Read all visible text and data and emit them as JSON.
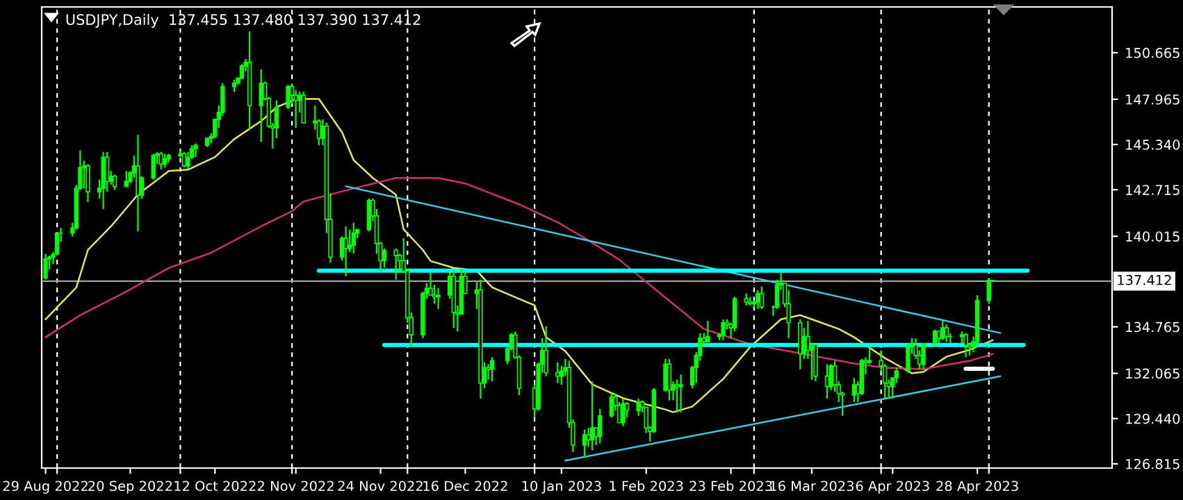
{
  "chart_data": {
    "type": "candlestick",
    "title": "USDJPY,Daily  137.455 137.480 137.390 137.412",
    "color": "#00ff00",
    "x": [
      "2022-08-29",
      "2022-08-30",
      "2022-08-31",
      "2022-09-01",
      "2022-09-02",
      "2022-09-05",
      "2022-09-06",
      "2022-09-07",
      "2022-09-08",
      "2022-09-09",
      "2022-09-12",
      "2022-09-13",
      "2022-09-14",
      "2022-09-15",
      "2022-09-16",
      "2022-09-19",
      "2022-09-20",
      "2022-09-21",
      "2022-09-22",
      "2022-09-23",
      "2022-09-26",
      "2022-09-27",
      "2022-09-28",
      "2022-09-29",
      "2022-09-30",
      "2022-10-03",
      "2022-10-04",
      "2022-10-05",
      "2022-10-06",
      "2022-10-07",
      "2022-10-10",
      "2022-10-11",
      "2022-10-12",
      "2022-10-13",
      "2022-10-14",
      "2022-10-17",
      "2022-10-18",
      "2022-10-19",
      "2022-10-20",
      "2022-10-21",
      "2022-10-24",
      "2022-10-25",
      "2022-10-26",
      "2022-10-27",
      "2022-10-28",
      "2022-10-31",
      "2022-11-01",
      "2022-11-02",
      "2022-11-03",
      "2022-11-04",
      "2022-11-07",
      "2022-11-08",
      "2022-11-09",
      "2022-11-10",
      "2022-11-11",
      "2022-11-14",
      "2022-11-15",
      "2022-11-16",
      "2022-11-17",
      "2022-11-18",
      "2022-11-21",
      "2022-11-22",
      "2022-11-23",
      "2022-11-24",
      "2022-11-25",
      "2022-11-28",
      "2022-11-29",
      "2022-11-30",
      "2022-12-01",
      "2022-12-02",
      "2022-12-05",
      "2022-12-06",
      "2022-12-07",
      "2022-12-08",
      "2022-12-09",
      "2022-12-12",
      "2022-12-13",
      "2022-12-14",
      "2022-12-15",
      "2022-12-16",
      "2022-12-19",
      "2022-12-20",
      "2022-12-21",
      "2022-12-22",
      "2022-12-23",
      "2022-12-27",
      "2022-12-28",
      "2022-12-29",
      "2022-12-30",
      "2023-01-03",
      "2023-01-04",
      "2023-01-05",
      "2023-01-06",
      "2023-01-09",
      "2023-01-10",
      "2023-01-11",
      "2023-01-12",
      "2023-01-13",
      "2023-01-16",
      "2023-01-17",
      "2023-01-18",
      "2023-01-19",
      "2023-01-20",
      "2023-01-23",
      "2023-01-24",
      "2023-01-25",
      "2023-01-26",
      "2023-01-27",
      "2023-01-30",
      "2023-01-31",
      "2023-02-01",
      "2023-02-02",
      "2023-02-03",
      "2023-02-06",
      "2023-02-07",
      "2023-02-08",
      "2023-02-09",
      "2023-02-10",
      "2023-02-13",
      "2023-02-14",
      "2023-02-15",
      "2023-02-16",
      "2023-02-17",
      "2023-02-20",
      "2023-02-21",
      "2023-02-22",
      "2023-02-23",
      "2023-02-24",
      "2023-02-27",
      "2023-02-28",
      "2023-03-01",
      "2023-03-02",
      "2023-03-03",
      "2023-03-06",
      "2023-03-07",
      "2023-03-08",
      "2023-03-09",
      "2023-03-10",
      "2023-03-13",
      "2023-03-14",
      "2023-03-15",
      "2023-03-16",
      "2023-03-17",
      "2023-03-20",
      "2023-03-21",
      "2023-03-22",
      "2023-03-23",
      "2023-03-24",
      "2023-03-27",
      "2023-03-28",
      "2023-03-29",
      "2023-03-30",
      "2023-03-31",
      "2023-04-03",
      "2023-04-04",
      "2023-04-05",
      "2023-04-06",
      "2023-04-07",
      "2023-04-10",
      "2023-04-11",
      "2023-04-12",
      "2023-04-13",
      "2023-04-14",
      "2023-04-17",
      "2023-04-18",
      "2023-04-19",
      "2023-04-20",
      "2023-04-21",
      "2023-04-24",
      "2023-04-25",
      "2023-04-26",
      "2023-04-27",
      "2023-04-28",
      "2023-05-01",
      "2023-05-02"
    ],
    "ohlc": [
      [
        137.6,
        139.0,
        137.5,
        138.7
      ],
      [
        138.7,
        138.9,
        138.1,
        138.8
      ],
      [
        138.8,
        139.1,
        138.4,
        138.96
      ],
      [
        139.0,
        140.2,
        138.9,
        140.2
      ],
      [
        140.2,
        140.5,
        139.7,
        140.2
      ],
      [
        140.2,
        140.8,
        140.0,
        140.5
      ],
      [
        140.5,
        143.0,
        140.4,
        142.8
      ],
      [
        142.8,
        145.0,
        142.7,
        144.0
      ],
      [
        144.0,
        144.4,
        142.8,
        144.1
      ],
      [
        144.1,
        144.2,
        142.0,
        142.6
      ],
      [
        142.6,
        143.3,
        142.2,
        142.8
      ],
      [
        142.8,
        144.9,
        141.6,
        144.6
      ],
      [
        144.6,
        144.9,
        142.6,
        143.2
      ],
      [
        143.2,
        143.8,
        143.0,
        143.5
      ],
      [
        143.5,
        143.6,
        142.7,
        142.9
      ],
      [
        142.9,
        143.8,
        142.9,
        143.2
      ],
      [
        143.2,
        143.8,
        143.1,
        143.7
      ],
      [
        143.7,
        144.7,
        143.4,
        144.1
      ],
      [
        144.1,
        145.9,
        140.3,
        142.4
      ],
      [
        142.4,
        143.5,
        142.2,
        143.4
      ],
      [
        143.4,
        144.8,
        143.3,
        144.7
      ],
      [
        144.7,
        144.9,
        144.2,
        144.8
      ],
      [
        144.8,
        144.9,
        143.9,
        144.2
      ],
      [
        144.2,
        144.8,
        144.0,
        144.5
      ],
      [
        144.5,
        144.8,
        144.3,
        144.7
      ],
      [
        144.7,
        145.0,
        144.6,
        144.8
      ],
      [
        144.8,
        144.9,
        144.0,
        144.1
      ],
      [
        144.1,
        144.9,
        143.9,
        144.6
      ],
      [
        144.6,
        145.3,
        144.5,
        145.1
      ],
      [
        145.1,
        145.4,
        144.6,
        145.3
      ],
      [
        145.3,
        145.7,
        145.2,
        145.7
      ],
      [
        145.7,
        146.0,
        145.4,
        145.8
      ],
      [
        145.8,
        146.8,
        145.7,
        146.8
      ],
      [
        146.8,
        147.6,
        146.3,
        147.2
      ],
      [
        147.2,
        148.9,
        147.0,
        148.7
      ],
      [
        148.7,
        149.1,
        148.4,
        148.9
      ],
      [
        148.9,
        149.2,
        148.8,
        149.2
      ],
      [
        149.2,
        150.0,
        149.1,
        149.9
      ],
      [
        149.9,
        150.3,
        149.6,
        150.1
      ],
      [
        150.1,
        151.9,
        146.2,
        147.6
      ],
      [
        147.6,
        149.7,
        145.5,
        148.9
      ],
      [
        148.9,
        149.0,
        147.9,
        148.0
      ],
      [
        148.0,
        148.1,
        146.3,
        146.4
      ],
      [
        146.4,
        146.6,
        145.1,
        146.3
      ],
      [
        146.3,
        147.9,
        145.7,
        147.5
      ],
      [
        147.5,
        148.8,
        147.4,
        148.7
      ],
      [
        148.7,
        148.8,
        147.7,
        148.2
      ],
      [
        148.2,
        148.5,
        146.3,
        147.9
      ],
      [
        147.9,
        148.4,
        147.2,
        148.2
      ],
      [
        148.2,
        148.4,
        146.6,
        146.6
      ],
      [
        146.6,
        147.6,
        146.2,
        146.7
      ],
      [
        146.7,
        146.8,
        145.3,
        145.7
      ],
      [
        145.7,
        146.8,
        145.3,
        146.4
      ],
      [
        146.4,
        146.6,
        140.2,
        141.0
      ],
      [
        141.0,
        142.5,
        138.5,
        138.8
      ],
      [
        138.8,
        140.0,
        138.6,
        139.9
      ],
      [
        139.9,
        140.6,
        137.7,
        139.3
      ],
      [
        139.3,
        140.4,
        139.1,
        139.5
      ],
      [
        139.5,
        140.8,
        139.0,
        140.2
      ],
      [
        140.2,
        140.4,
        139.9,
        140.4
      ],
      [
        140.4,
        142.2,
        140.3,
        142.1
      ],
      [
        142.1,
        142.2,
        140.9,
        141.2
      ],
      [
        141.2,
        141.6,
        139.0,
        139.6
      ],
      [
        139.6,
        139.7,
        138.0,
        138.6
      ],
      [
        138.6,
        139.3,
        138.2,
        139.2
      ],
      [
        139.2,
        139.3,
        137.5,
        138.9
      ],
      [
        138.9,
        139.0,
        137.9,
        138.6
      ],
      [
        138.6,
        139.9,
        137.9,
        138.0
      ],
      [
        138.0,
        138.1,
        135.0,
        135.3
      ],
      [
        135.3,
        135.6,
        133.6,
        134.3
      ],
      [
        134.3,
        136.8,
        134.1,
        136.7
      ],
      [
        136.7,
        137.3,
        136.4,
        137.0
      ],
      [
        137.0,
        137.9,
        136.6,
        136.6
      ],
      [
        136.6,
        137.2,
        136.1,
        136.5
      ],
      [
        136.5,
        137.0,
        135.8,
        136.6
      ],
      [
        136.6,
        138.0,
        136.4,
        137.7
      ],
      [
        137.7,
        138.1,
        134.7,
        135.6
      ],
      [
        135.6,
        136.0,
        134.5,
        135.5
      ],
      [
        135.5,
        138.2,
        135.5,
        137.7
      ],
      [
        137.7,
        138.0,
        136.7,
        136.7
      ],
      [
        136.7,
        137.4,
        135.8,
        136.9
      ],
      [
        136.9,
        137.5,
        130.6,
        131.5
      ],
      [
        131.5,
        132.7,
        131.2,
        132.4
      ],
      [
        132.4,
        132.6,
        131.7,
        132.3
      ],
      [
        132.3,
        133.0,
        131.6,
        132.8
      ],
      [
        132.8,
        133.6,
        132.6,
        133.5
      ],
      [
        133.5,
        134.4,
        133.4,
        134.3
      ],
      [
        134.3,
        134.5,
        132.9,
        133.0
      ],
      [
        133.0,
        133.1,
        130.8,
        131.2
      ],
      [
        131.2,
        131.4,
        129.5,
        130.0
      ],
      [
        130.0,
        132.7,
        129.9,
        132.6
      ],
      [
        132.6,
        134.1,
        132.1,
        133.4
      ],
      [
        133.4,
        134.8,
        131.9,
        132.1
      ],
      [
        132.1,
        132.7,
        131.5,
        131.9
      ],
      [
        131.9,
        132.5,
        131.4,
        132.2
      ],
      [
        132.2,
        132.9,
        131.9,
        132.4
      ],
      [
        132.4,
        132.8,
        128.9,
        129.2
      ],
      [
        129.2,
        129.4,
        127.5,
        127.9
      ],
      [
        127.9,
        128.8,
        127.2,
        128.5
      ],
      [
        128.5,
        128.9,
        127.8,
        128.2
      ],
      [
        128.2,
        131.6,
        127.6,
        128.9
      ],
      [
        128.9,
        128.9,
        127.9,
        128.4
      ],
      [
        128.4,
        130.0,
        128.0,
        129.6
      ],
      [
        129.6,
        130.9,
        129.5,
        130.7
      ],
      [
        130.7,
        130.9,
        129.9,
        130.2
      ],
      [
        130.2,
        130.4,
        129.2,
        129.2
      ],
      [
        129.2,
        130.6,
        129.0,
        130.3
      ],
      [
        130.3,
        130.4,
        129.5,
        129.9
      ],
      [
        129.9,
        130.6,
        129.6,
        130.4
      ],
      [
        130.4,
        130.5,
        129.8,
        130.1
      ],
      [
        130.1,
        130.1,
        128.6,
        128.9
      ],
      [
        128.9,
        129.0,
        128.1,
        128.7
      ],
      [
        128.7,
        131.2,
        128.6,
        131.1
      ],
      [
        131.1,
        132.9,
        131.0,
        132.6
      ],
      [
        132.6,
        132.9,
        130.5,
        131.1
      ],
      [
        131.1,
        131.6,
        130.5,
        131.4
      ],
      [
        131.4,
        131.7,
        129.8,
        131.3
      ],
      [
        131.3,
        132.0,
        129.8,
        131.4
      ],
      [
        131.4,
        132.5,
        131.2,
        132.4
      ],
      [
        132.4,
        133.3,
        131.5,
        133.1
      ],
      [
        133.1,
        134.4,
        132.8,
        134.1
      ],
      [
        134.1,
        134.4,
        133.7,
        133.9
      ],
      [
        133.9,
        135.1,
        133.9,
        134.2
      ],
      [
        134.2,
        134.4,
        134.0,
        134.3
      ],
      [
        134.3,
        135.2,
        134.0,
        135.0
      ],
      [
        135.0,
        135.2,
        134.6,
        134.9
      ],
      [
        134.9,
        135.0,
        134.1,
        134.7
      ],
      [
        134.7,
        136.5,
        134.5,
        136.4
      ],
      [
        136.4,
        136.7,
        136.0,
        136.2
      ],
      [
        136.2,
        136.5,
        136.0,
        136.1
      ],
      [
        136.1,
        136.3,
        135.9,
        136.2
      ],
      [
        136.2,
        136.9,
        135.8,
        136.7
      ],
      [
        136.7,
        137.1,
        135.8,
        135.9
      ],
      [
        135.9,
        136.0,
        135.4,
        135.9
      ],
      [
        135.9,
        137.5,
        135.8,
        137.2
      ],
      [
        137.2,
        137.9,
        136.9,
        137.3
      ],
      [
        137.3,
        137.3,
        135.9,
        136.1
      ],
      [
        136.1,
        136.9,
        134.1,
        135.0
      ],
      [
        135.0,
        135.2,
        132.3,
        133.2
      ],
      [
        133.2,
        134.7,
        132.9,
        134.2
      ],
      [
        134.2,
        135.1,
        132.9,
        133.4
      ],
      [
        133.4,
        133.8,
        131.7,
        133.7
      ],
      [
        133.7,
        133.8,
        131.6,
        131.9
      ],
      [
        131.9,
        132.6,
        130.6,
        131.3
      ],
      [
        131.3,
        132.6,
        131.1,
        132.5
      ],
      [
        132.5,
        132.8,
        131.0,
        131.4
      ],
      [
        131.4,
        131.6,
        130.4,
        130.9
      ],
      [
        130.9,
        131.0,
        129.6,
        130.8
      ],
      [
        130.8,
        131.8,
        130.4,
        131.4
      ],
      [
        131.4,
        131.6,
        130.4,
        130.9
      ],
      [
        130.9,
        132.9,
        130.8,
        132.8
      ],
      [
        132.8,
        133.0,
        132.0,
        132.7
      ],
      [
        132.7,
        133.6,
        132.6,
        132.8
      ],
      [
        132.8,
        133.4,
        132.2,
        132.5
      ],
      [
        132.5,
        132.6,
        130.6,
        131.5
      ],
      [
        131.5,
        131.7,
        130.7,
        131.3
      ],
      [
        131.3,
        131.8,
        130.6,
        131.8
      ],
      [
        131.8,
        132.4,
        131.5,
        132.2
      ],
      [
        132.2,
        133.8,
        132.1,
        133.6
      ],
      [
        133.6,
        134.1,
        133.2,
        133.7
      ],
      [
        133.7,
        134.1,
        132.9,
        133.1
      ],
      [
        133.1,
        133.4,
        132.3,
        132.6
      ],
      [
        132.6,
        133.8,
        132.3,
        133.8
      ],
      [
        133.8,
        134.6,
        133.7,
        134.5
      ],
      [
        134.5,
        134.5,
        133.8,
        134.1
      ],
      [
        134.1,
        135.1,
        134.0,
        134.7
      ],
      [
        134.7,
        134.9,
        133.9,
        134.2
      ],
      [
        134.2,
        134.4,
        133.8,
        134.2
      ],
      [
        134.2,
        134.5,
        133.8,
        134.3
      ],
      [
        134.3,
        134.4,
        133.0,
        133.7
      ],
      [
        133.7,
        133.8,
        133.1,
        133.6
      ],
      [
        133.6,
        134.2,
        133.3,
        133.9
      ],
      [
        133.9,
        136.6,
        133.6,
        136.3
      ],
      [
        136.3,
        137.6,
        136.1,
        137.45
      ],
      [
        137.455,
        137.48,
        137.39,
        137.412
      ]
    ],
    "series": [
      {
        "type": "line",
        "color": "#e6e65a",
        "x": [
          "2022-08-29",
          "2022-09-06",
          "2022-09-09",
          "2022-09-15",
          "2022-09-22",
          "2022-09-30",
          "2022-10-05",
          "2022-10-12",
          "2022-10-17",
          "2022-10-24",
          "2022-10-28",
          "2022-11-02",
          "2022-11-08",
          "2022-11-14",
          "2022-11-17",
          "2022-11-22",
          "2022-11-28",
          "2022-11-30",
          "2022-12-05",
          "2022-12-07",
          "2022-12-13",
          "2022-12-19",
          "2022-12-23",
          "2023-01-03",
          "2023-01-06",
          "2023-01-11",
          "2023-01-18",
          "2023-01-26",
          "2023-02-06",
          "2023-02-08",
          "2023-02-13",
          "2023-02-21",
          "2023-02-28",
          "2023-03-08",
          "2023-03-13",
          "2023-03-16",
          "2023-03-23",
          "2023-03-27",
          "2023-04-04",
          "2023-04-11",
          "2023-04-14",
          "2023-04-20",
          "2023-04-26",
          "2023-05-02"
        ],
        "values": [
          135.2,
          137.05,
          139.22,
          140.59,
          142.44,
          143.8,
          143.88,
          144.61,
          145.65,
          146.7,
          147.5,
          147.98,
          147.98,
          146.05,
          144.44,
          143.4,
          142.43,
          140.42,
          139.22,
          138.58,
          138.18,
          138.02,
          137.05,
          136.01,
          134.16,
          133.35,
          131.42,
          130.62,
          129.97,
          129.81,
          130.14,
          131.74,
          133.59,
          135.2,
          135.44,
          135.2,
          134.64,
          134.16,
          132.95,
          132.07,
          132.15,
          133.03,
          133.43,
          133.99
        ]
      },
      {
        "type": "line",
        "color": "#d0306a",
        "x": [
          "2022-08-29",
          "2022-09-07",
          "2022-09-19",
          "2022-09-30",
          "2022-10-11",
          "2022-10-24",
          "2022-11-01",
          "2022-11-04",
          "2022-11-15",
          "2022-11-28",
          "2022-12-09",
          "2022-12-16",
          "2022-12-30",
          "2023-01-09",
          "2023-01-17",
          "2023-01-25",
          "2023-02-01",
          "2023-02-16",
          "2023-02-28",
          "2023-03-10",
          "2023-03-27",
          "2023-04-04",
          "2023-04-14",
          "2023-04-26",
          "2023-05-02"
        ],
        "values": [
          134.16,
          135.44,
          136.81,
          138.18,
          139.06,
          140.59,
          141.47,
          142.03,
          142.68,
          143.4,
          143.4,
          143.08,
          141.87,
          140.83,
          139.78,
          138.66,
          137.37,
          134.64,
          133.75,
          133.35,
          132.63,
          132.39,
          132.31,
          132.79,
          133.19
        ]
      },
      {
        "type": "line",
        "color": "#40c8e0",
        "x": [
          "2022-11-15",
          "2023-05-04"
        ],
        "values": [
          142.92,
          134.4
        ]
      },
      {
        "type": "line",
        "color": "#40c8e0",
        "x": [
          "2023-01-11",
          "2023-05-04"
        ],
        "values": [
          127.0,
          131.9
        ]
      },
      {
        "type": "line",
        "color": "#00ffff",
        "x": [
          "2022-11-08",
          "2023-05-11"
        ],
        "values": [
          138.02,
          138.02
        ]
      },
      {
        "type": "line",
        "color": "#00ffff",
        "x": [
          "2022-11-25",
          "2023-05-10"
        ],
        "values": [
          133.71,
          133.71
        ]
      },
      {
        "type": "line",
        "color": "#ffffff",
        "x": [
          "2023-04-25",
          "2023-05-02"
        ],
        "values": [
          132.33,
          132.33
        ]
      }
    ],
    "ref_lines": [
      {
        "axis": "y",
        "value": 137.412,
        "label": "137.412",
        "color": "#a0a0a0"
      }
    ],
    "xlim": [
      "2022-08-28",
      "2023-06-02"
    ],
    "ylim": [
      126.57,
      153.32
    ],
    "xticks": [
      {
        "value": "2022-08-29",
        "label": "29 Aug 2022"
      },
      {
        "value": "2022-09-20",
        "label": "20 Sep 2022"
      },
      {
        "value": "2022-10-12",
        "label": "12 Oct 2022"
      },
      {
        "value": "2022-11-02",
        "label": "2 Nov 2022"
      },
      {
        "value": "2022-11-24",
        "label": "24 Nov 2022"
      },
      {
        "value": "2022-12-16",
        "label": "16 Dec 2022"
      },
      {
        "value": "2023-01-10",
        "label": "10 Jan 2023"
      },
      {
        "value": "2023-02-01",
        "label": "1 Feb 2023"
      },
      {
        "value": "2023-02-23",
        "label": "23 Feb 2023"
      },
      {
        "value": "2023-03-16",
        "label": "16 Mar 2023"
      },
      {
        "value": "2023-04-06",
        "label": "6 Apr 2023"
      },
      {
        "value": "2023-04-28",
        "label": "28 Apr 2023"
      },
      {
        "value": "2022-09-01",
        "label": null
      },
      {
        "value": "2022-10-03",
        "label": null
      },
      {
        "value": "2022-11-01",
        "label": null
      },
      {
        "value": "2022-12-01",
        "label": null
      },
      {
        "value": "2023-01-03",
        "label": null
      },
      {
        "value": "2023-03-01",
        "label": null
      },
      {
        "value": "2023-04-03",
        "label": null
      },
      {
        "value": "2023-05-01",
        "label": null
      }
    ],
    "yticks": [
      126.815,
      {
        "value": 129.44,
        "label": "129.440"
      },
      132.065,
      134.765,
      140.015,
      142.715,
      {
        "value": 145.34,
        "label": "145.340"
      },
      147.965,
      150.665
    ],
    "grid": "x"
  }
}
